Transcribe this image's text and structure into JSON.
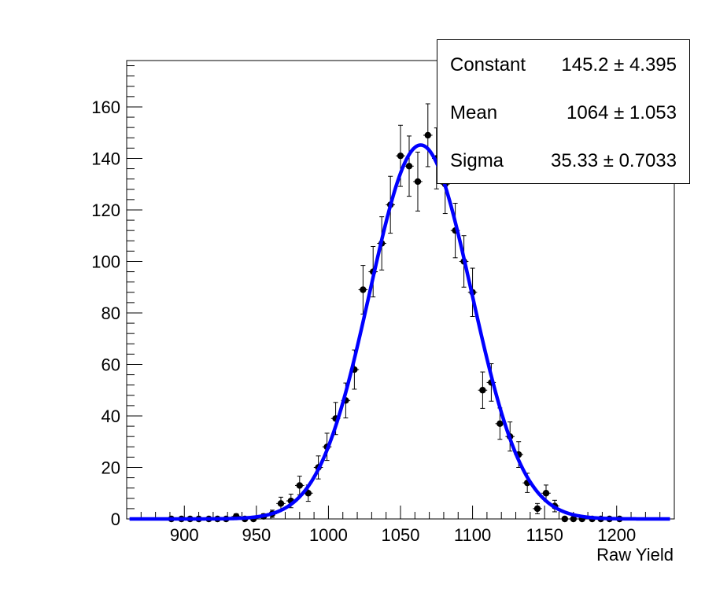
{
  "chart_data": {
    "type": "scatter",
    "title": "",
    "xlabel": "Raw Yield",
    "ylabel": "",
    "xlim": [
      860,
      1240
    ],
    "ylim": [
      0,
      178
    ],
    "x_ticks": [
      900,
      950,
      1000,
      1050,
      1100,
      1150,
      1200
    ],
    "y_ticks": [
      0,
      20,
      40,
      60,
      80,
      100,
      120,
      140,
      160
    ],
    "grid": false,
    "bin_width": 6.33,
    "series": [
      {
        "style": "points-with-error-bars",
        "color": "#000000",
        "x": [
          891,
          898,
          904,
          910,
          917,
          923,
          929,
          936,
          942,
          948,
          955,
          961,
          967,
          974,
          980,
          986,
          993,
          999,
          1005,
          1012,
          1018,
          1024,
          1031,
          1037,
          1043,
          1050,
          1056,
          1062,
          1069,
          1075,
          1081,
          1088,
          1094,
          1100,
          1107,
          1113,
          1119,
          1126,
          1132,
          1138,
          1145,
          1151,
          1157,
          1164,
          1170,
          1176,
          1183,
          1189,
          1195,
          1202
        ],
        "y": [
          0,
          0,
          0,
          0,
          0,
          0,
          0,
          1,
          0,
          0,
          1,
          2,
          6,
          7,
          13,
          10,
          20,
          28,
          39,
          46,
          58,
          89,
          96,
          107,
          122,
          141,
          137,
          131,
          149,
          140,
          130,
          112,
          100,
          88,
          50,
          53,
          37,
          32,
          25,
          14,
          4,
          10,
          5,
          0,
          0,
          0,
          0,
          0,
          0,
          0
        ]
      },
      {
        "style": "fit-curve",
        "color": "#0000ff",
        "function": "gaus",
        "constant": 145.2,
        "mean": 1064,
        "sigma": 35.33,
        "x_range": [
          862,
          1237
        ]
      }
    ]
  },
  "stats": {
    "constant_label": "Constant",
    "constant_value": "145.2 ± 4.395",
    "mean_label": "Mean",
    "mean_value": "1064 ± 1.053",
    "sigma_label": "Sigma",
    "sigma_value": "35.33 ± 0.7033"
  }
}
